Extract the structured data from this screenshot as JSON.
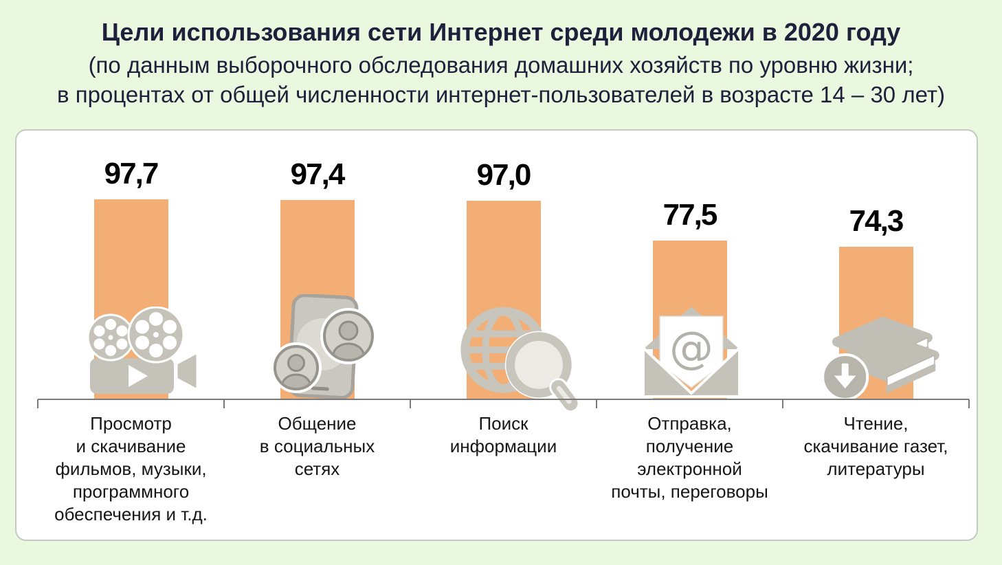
{
  "page": {
    "background_color": "#e9f8de",
    "panel_background": "#ffffff",
    "panel_border_color": "#c5c9c4",
    "header_text_color": "#20203c"
  },
  "header": {
    "title": "Цели использования сети Интернет среди молодежи в 2020 году",
    "subtitle_line1": "(по данным выборочного обследования домашних хозяйств по уровню жизни;",
    "subtitle_line2": "в процентах от общей численности интернет-пользователей в возрасте 14 – 30 лет)"
  },
  "chart_data": {
    "type": "bar",
    "title": "Цели использования сети Интернет среди молодежи в 2020 году",
    "subtitle": "(по данным выборочного обследования домашних хозяйств по уровню жизни; в процентах от общей численности интернет-пользователей в возрасте 14 – 30 лет)",
    "unit": "percent of internet users aged 14-30",
    "ylim": [
      0,
      100
    ],
    "grid": false,
    "legend": "none",
    "categories": [
      "Просмотр\nи скачивание\nфильмов, музыки,\nпрограммного\nобеспечения и т.д.",
      "Общение\nв социальных\nсетях",
      "Поиск\nинформации",
      "Отправка,\nполучение\nэлектронной\nпочты, переговоры",
      "Чтение,\nскачивание газет,\nлитературы"
    ],
    "values": [
      97.7,
      97.4,
      97.0,
      77.5,
      74.3
    ],
    "value_labels": [
      "97,7",
      "97,4",
      "97,0",
      "77,5",
      "74,3"
    ],
    "icons": [
      "film-camera-icon",
      "phone-social-icon",
      "globe-search-icon",
      "email-at-icon",
      "books-download-icon"
    ],
    "bar_color": "#f2ae74",
    "icon_color": "#c5c3b9",
    "axis_color": "#7a7a7a",
    "value_text_color": "#000000",
    "label_text_color": "#161616"
  }
}
